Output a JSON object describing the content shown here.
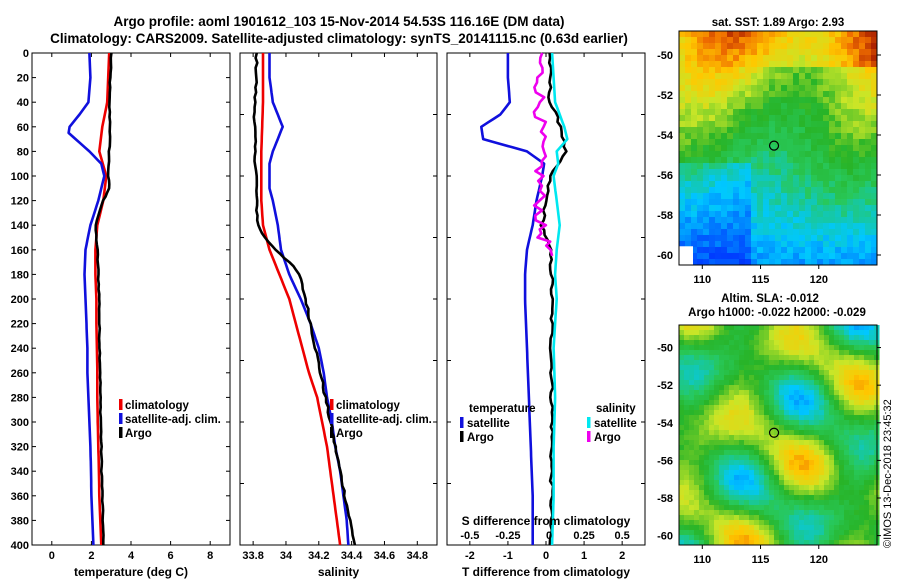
{
  "title_line1": "Argo profile: aoml 1901612_103 15-Nov-2014 54.53S 116.16E (DM data)",
  "title_line2": "Climatology: CARS2009. Satellite-adjusted climatology: synTS_20141115.nc (0.63d earlier)",
  "credit": "©IMOS 13-Dec-2018 23:45:32",
  "colors": {
    "climatology": "#ee0000",
    "satellite": "#1010dd",
    "argo": "#000000",
    "sal_sat": "#00e8f0",
    "sal_argo": "#ee00ee"
  },
  "chart_data": [
    {
      "type": "line",
      "title": "",
      "xlabel": "temperature (deg C)",
      "ylabel": "",
      "xlim": [
        -1,
        9
      ],
      "ylim": [
        400,
        0
      ],
      "xticks": [
        0,
        2,
        4,
        6,
        8
      ],
      "yticks": [
        0,
        20,
        40,
        60,
        80,
        100,
        120,
        140,
        160,
        180,
        200,
        220,
        240,
        260,
        280,
        300,
        320,
        340,
        360,
        380,
        400
      ],
      "legend": [
        "climatology",
        "satellite-adj. clim.",
        "Argo"
      ],
      "series": [
        {
          "name": "climatology",
          "depth": [
            0,
            20,
            40,
            60,
            80,
            100,
            120,
            140,
            160,
            180,
            200,
            220,
            240,
            260,
            280,
            300,
            320,
            340,
            360,
            380,
            400
          ],
          "values": [
            2.9,
            2.85,
            2.8,
            2.55,
            2.4,
            2.75,
            2.6,
            2.3,
            2.2,
            2.2,
            2.25,
            2.25,
            2.28,
            2.3,
            2.3,
            2.32,
            2.35,
            2.38,
            2.4,
            2.45,
            2.5
          ]
        },
        {
          "name": "satellite-adj. clim.",
          "depth": [
            0,
            20,
            40,
            50,
            60,
            65,
            70,
            80,
            90,
            100,
            120,
            140,
            160,
            180,
            200,
            220,
            240,
            260,
            280,
            300,
            320,
            340,
            360,
            380,
            400
          ],
          "values": [
            1.9,
            1.95,
            1.85,
            1.4,
            0.9,
            0.85,
            1.2,
            1.9,
            2.5,
            2.65,
            2.35,
            1.95,
            1.7,
            1.65,
            1.7,
            1.75,
            1.8,
            1.8,
            1.85,
            1.9,
            1.95,
            1.98,
            2.0,
            2.05,
            2.1
          ]
        },
        {
          "name": "Argo",
          "depth": [
            0,
            20,
            40,
            60,
            80,
            100,
            110,
            120,
            140,
            160,
            180,
            200,
            220,
            240,
            260,
            280,
            300,
            320,
            340,
            360,
            380,
            400
          ],
          "values": [
            3.0,
            2.95,
            2.9,
            2.95,
            2.9,
            2.85,
            2.9,
            2.6,
            2.2,
            2.3,
            2.35,
            2.4,
            2.4,
            2.42,
            2.45,
            2.45,
            2.48,
            2.5,
            2.52,
            2.55,
            2.58,
            2.6
          ]
        }
      ]
    },
    {
      "type": "line",
      "title": "",
      "xlabel": "salinity",
      "ylabel": "",
      "xlim": [
        33.72,
        34.92
      ],
      "ylim": [
        400,
        0
      ],
      "xticks": [
        33.8,
        34,
        34.2,
        34.4,
        34.6,
        34.8
      ],
      "xticklabels": [
        "33.8",
        "34",
        "34.2",
        "34.4",
        "34.6",
        "34.8"
      ],
      "legend": [
        "climatology",
        "satellite-adj. clim.",
        "Argo"
      ],
      "series": [
        {
          "name": "climatology",
          "depth": [
            0,
            40,
            80,
            120,
            140,
            160,
            180,
            200,
            220,
            240,
            260,
            280,
            300,
            320,
            340,
            360,
            380,
            400
          ],
          "values": [
            33.86,
            33.86,
            33.85,
            33.85,
            33.86,
            33.9,
            33.96,
            34.02,
            34.06,
            34.1,
            34.14,
            34.19,
            34.22,
            34.25,
            34.27,
            34.29,
            34.31,
            34.33
          ]
        },
        {
          "name": "satellite-adj. clim.",
          "depth": [
            0,
            20,
            40,
            50,
            60,
            70,
            80,
            90,
            100,
            110,
            120,
            140,
            160,
            180,
            200,
            220,
            240,
            260,
            280,
            300,
            320,
            340,
            360,
            380,
            400
          ],
          "values": [
            33.9,
            33.9,
            33.92,
            33.95,
            33.98,
            33.95,
            33.92,
            33.9,
            33.9,
            33.9,
            33.92,
            33.95,
            33.97,
            34.02,
            34.09,
            34.15,
            34.2,
            34.23,
            34.25,
            34.28,
            34.3,
            34.33,
            34.35,
            34.37,
            34.38
          ]
        },
        {
          "name": "Argo",
          "depth": [
            0,
            20,
            40,
            60,
            80,
            100,
            120,
            140,
            150,
            160,
            170,
            180,
            200,
            220,
            240,
            260,
            280,
            300,
            320,
            340,
            360,
            380,
            400
          ],
          "values": [
            33.82,
            33.82,
            33.81,
            33.81,
            33.81,
            33.82,
            33.82,
            33.83,
            33.87,
            33.94,
            34.02,
            34.08,
            34.12,
            34.15,
            34.18,
            34.21,
            34.24,
            34.27,
            34.3,
            34.33,
            34.36,
            34.39,
            34.42
          ]
        }
      ]
    },
    {
      "type": "line",
      "title": "",
      "xlabel": "T difference from climatology",
      "x2label": "S difference from climatology",
      "ylabel": "",
      "xlim": [
        -2.6,
        2.6
      ],
      "ylim": [
        400,
        0
      ],
      "xticks": [
        -2,
        -1,
        0,
        1,
        2
      ],
      "x2ticklabels": [
        "-0.5",
        "-0.25",
        "0",
        "0.25",
        "0.5"
      ],
      "legend_temperature_heading": "temperature",
      "legend_salinity_heading": "salinity",
      "legend": [
        "satellite",
        "Argo",
        "satellite",
        "Argo"
      ],
      "series": [
        {
          "name": "T satellite",
          "depth": [
            0,
            20,
            40,
            50,
            60,
            70,
            80,
            90,
            100,
            120,
            140,
            160,
            180,
            200,
            240,
            280,
            320,
            360,
            400
          ],
          "values": [
            -1.0,
            -1.0,
            -0.95,
            -1.2,
            -1.7,
            -1.65,
            -0.5,
            -0.05,
            -0.1,
            -0.25,
            -0.35,
            -0.5,
            -0.55,
            -0.55,
            -0.5,
            -0.45,
            -0.4,
            -0.35,
            -0.35
          ]
        },
        {
          "name": "T Argo",
          "depth": [
            0,
            20,
            40,
            60,
            80,
            100,
            120,
            140,
            160,
            180,
            200,
            220,
            240,
            260,
            280,
            300,
            320,
            340,
            360,
            380,
            400
          ],
          "values": [
            0.1,
            0.1,
            0.1,
            0.4,
            0.5,
            0.1,
            0.0,
            -0.1,
            0.1,
            0.15,
            0.15,
            0.15,
            0.14,
            0.15,
            0.15,
            0.16,
            0.15,
            0.14,
            0.15,
            0.13,
            0.1
          ]
        },
        {
          "name": "S satellite",
          "depth": [
            0,
            40,
            60,
            70,
            80,
            90,
            100,
            120,
            140,
            160,
            180,
            200,
            240,
            280,
            320,
            360,
            400
          ],
          "values": [
            0.04,
            0.06,
            0.12,
            0.14,
            0.07,
            0.08,
            0.05,
            0.07,
            0.09,
            0.07,
            0.06,
            0.07,
            0.05,
            0.06,
            0.05,
            0.05,
            0.04
          ]
        },
        {
          "name": "S Argo",
          "depth": [
            0,
            40,
            80,
            120,
            140,
            150,
            160,
            165
          ],
          "values": [
            -0.04,
            -0.04,
            -0.04,
            -0.04,
            -0.04,
            -0.02,
            0.02,
            0.04
          ]
        }
      ]
    },
    {
      "type": "heatmap",
      "title": "sat. SST: 1.89 Argo: 2.93",
      "xlabel": "",
      "ylabel": "",
      "xlim": [
        108,
        125
      ],
      "ylim": [
        -60.5,
        -48.8
      ],
      "xticks": [
        110,
        115,
        120
      ],
      "yticks": [
        -50,
        -52,
        -54,
        -56,
        -58,
        -60
      ],
      "marker": {
        "lon": 116.16,
        "lat": -54.53
      }
    },
    {
      "type": "heatmap",
      "title": "Altim. SLA: -0.012",
      "subtitle": "Argo h1000: -0.022 h2000: -0.029",
      "xlabel": "",
      "ylabel": "",
      "xlim": [
        108,
        125
      ],
      "ylim": [
        -60.5,
        -48.8
      ],
      "xticks": [
        110,
        115,
        120
      ],
      "yticks": [
        -50,
        -52,
        -54,
        -56,
        -58,
        -60
      ],
      "marker": {
        "lon": 116.16,
        "lat": -54.53
      }
    }
  ]
}
